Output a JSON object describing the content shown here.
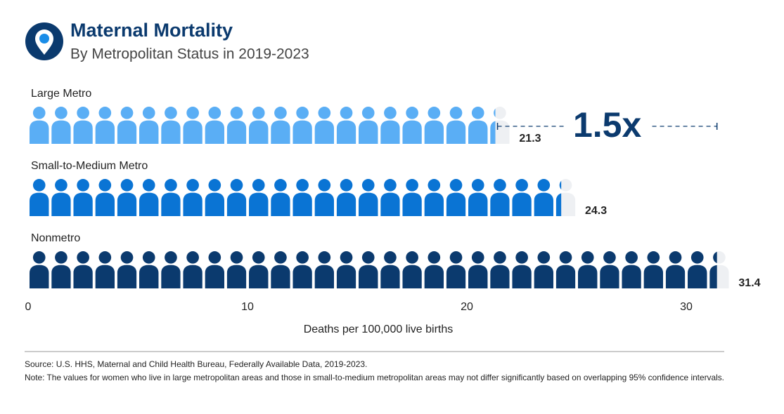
{
  "chart_data": {
    "type": "pictograph",
    "title": "Maternal Mortality",
    "subtitle": "By Metropolitan Status in 2019-2023",
    "categories": [
      "Large Metro",
      "Small-to-Medium Metro",
      "Nonmetro"
    ],
    "values": [
      21.3,
      24.3,
      31.4
    ],
    "colors": [
      "#5aaef5",
      "#0a74d4",
      "#0b3a6e"
    ],
    "empty_color": "#eef0f3",
    "xlim": [
      0,
      32
    ],
    "xticks": [
      0,
      10,
      20,
      30
    ],
    "x_label": "Deaths per 100,000 live births",
    "annotation": "1.5x",
    "source": "Source: U.S. HHS, Maternal and Child Health Bureau, Federally Available Data, 2019-2023.",
    "note": "Note: The values for women who live in large metropolitan areas and those in small-to-medium metropolitan areas may not differ significantly based on overlapping 95% confidence intervals."
  }
}
